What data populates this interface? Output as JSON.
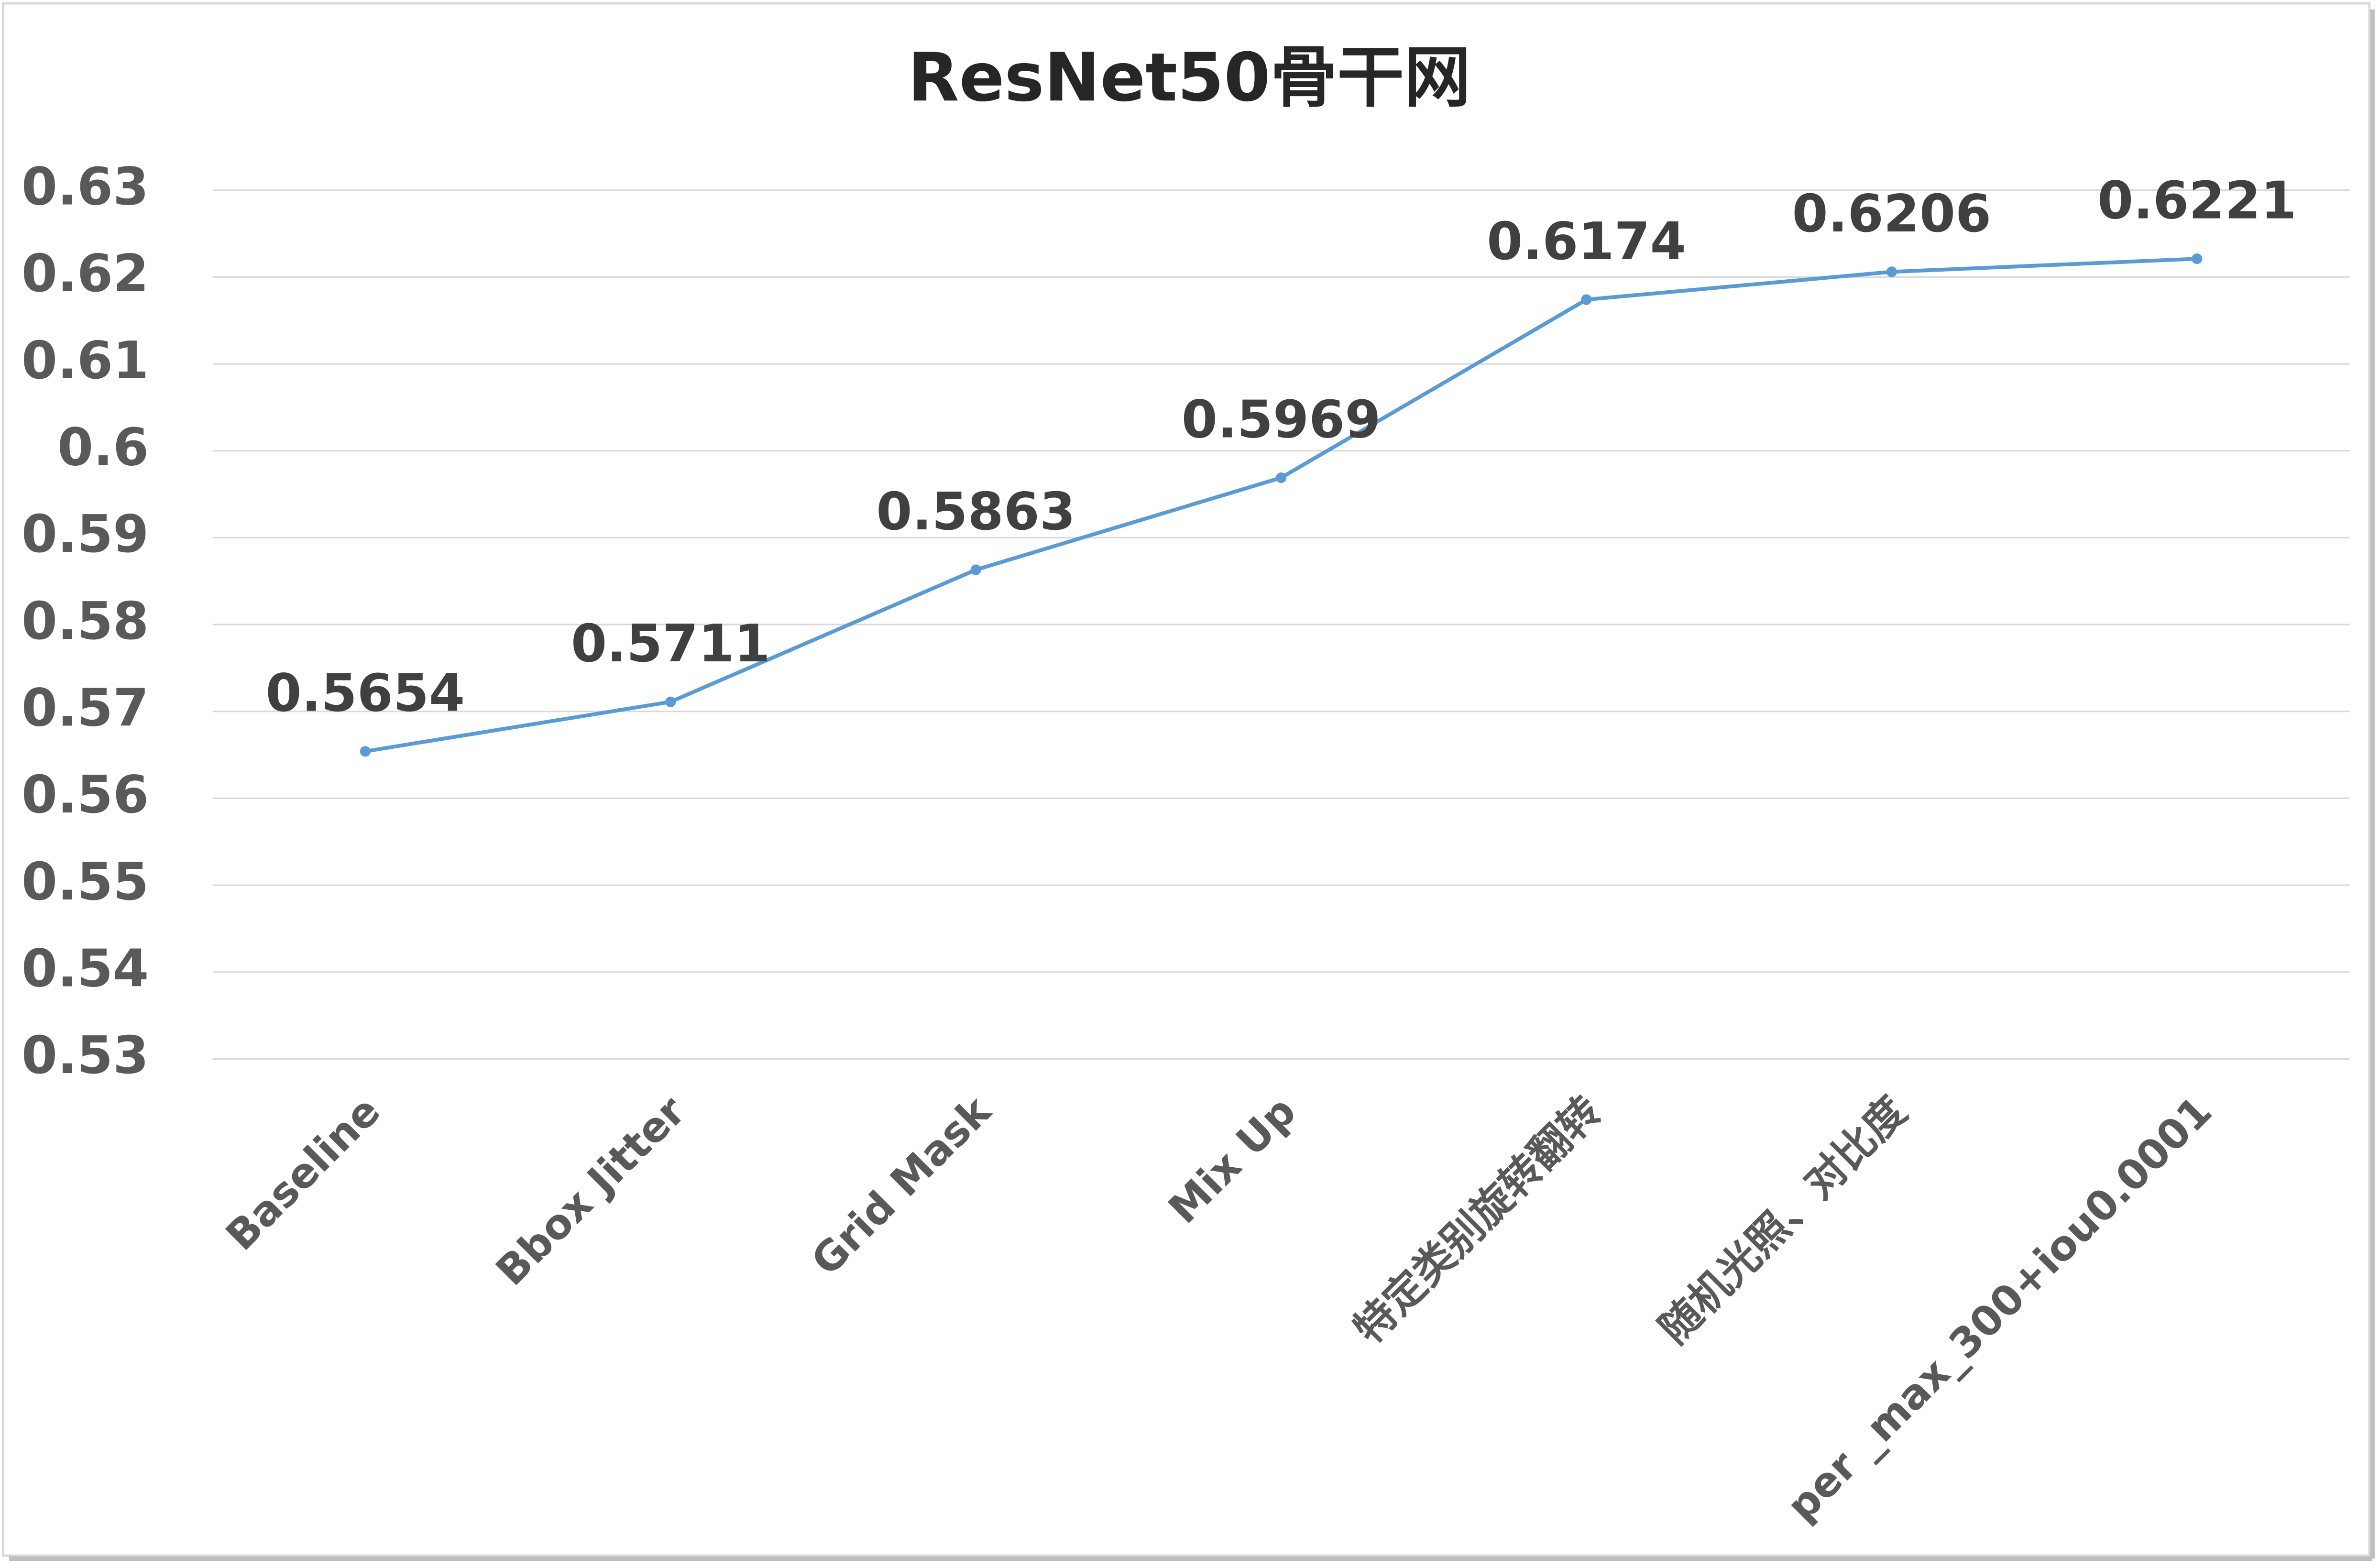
{
  "chart_data": {
    "type": "line",
    "title": "ResNet50骨干网",
    "categories": [
      "Baseline",
      "Bbox Jitter",
      "Grid Mask",
      "Mix Up",
      "特定类别旋转翻转",
      "随机光照、对比度",
      "per _max_300+iou0.0001"
    ],
    "values": [
      0.5654,
      0.5711,
      0.5863,
      0.5969,
      0.6174,
      0.6206,
      0.6221
    ],
    "color": "#5b9bd5",
    "ylim": [
      0.53,
      0.63
    ],
    "yticks": [
      0.53,
      0.54,
      0.55,
      0.56,
      0.57,
      0.58,
      0.59,
      0.6,
      0.61,
      0.62,
      0.63
    ],
    "grid": true
  }
}
